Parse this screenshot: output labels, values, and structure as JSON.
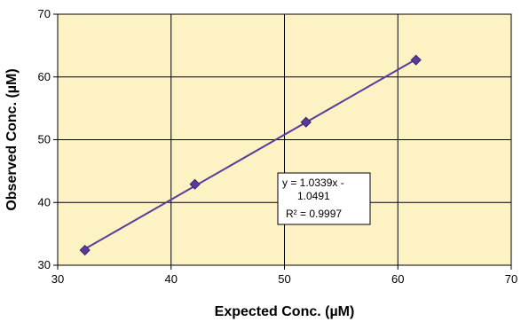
{
  "chart_data": {
    "type": "scatter",
    "xlabel": "Expected Conc. (µM)",
    "ylabel": "Observed Conc. (µM)",
    "xlim": [
      30,
      70
    ],
    "ylim": [
      30,
      70
    ],
    "x_ticks": [
      30,
      40,
      50,
      60,
      70
    ],
    "y_ticks": [
      30,
      40,
      50,
      60,
      70
    ],
    "grid": true,
    "series": [
      {
        "marker": "diamond",
        "color": "#5b3a9b",
        "points": [
          {
            "x": 32.4,
            "y": 32.4
          },
          {
            "x": 42.1,
            "y": 42.9
          },
          {
            "x": 51.9,
            "y": 52.8
          },
          {
            "x": 61.6,
            "y": 62.7
          }
        ]
      }
    ],
    "trendline": {
      "type": "linear",
      "x_range": [
        32.4,
        61.6
      ],
      "color": "#5b3a9b"
    },
    "annotation": {
      "lines": [
        "y = 1.0339x -",
        "1.0491",
        "R² = 0.9997"
      ]
    },
    "colors": {
      "plot_bg": "#fdf2c4",
      "grid": "#000000",
      "series": "#5b3a9b"
    }
  }
}
